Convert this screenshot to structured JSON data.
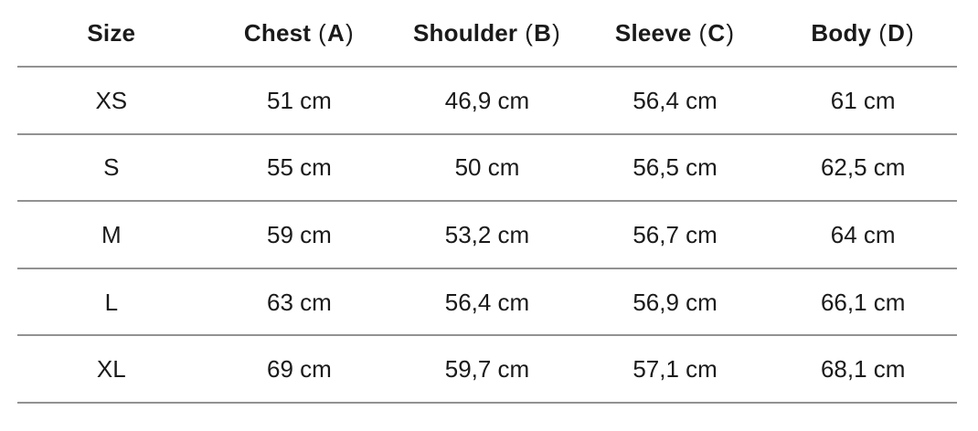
{
  "size_guide": {
    "punctuation": {
      "open_paren": "(",
      "close_paren": ")"
    },
    "unit": "cm",
    "headers": [
      {
        "label": "Size"
      },
      {
        "label": "Chest",
        "letter": "A"
      },
      {
        "label": "Shoulder",
        "letter": "B"
      },
      {
        "label": "Sleeve",
        "letter": "C"
      },
      {
        "label": "Body",
        "letter": "D"
      }
    ],
    "rows": [
      {
        "cells": [
          "XS",
          "51 cm",
          "46,9 cm",
          "56,4 cm",
          "61 cm"
        ]
      },
      {
        "cells": [
          "S",
          "55 cm",
          "50 cm",
          "56,5 cm",
          "62,5 cm"
        ]
      },
      {
        "cells": [
          "M",
          "59 cm",
          "53,2 cm",
          "56,7 cm",
          "64 cm"
        ]
      },
      {
        "cells": [
          "L",
          "63 cm",
          "56,4 cm",
          "56,9 cm",
          "66,1 cm"
        ]
      },
      {
        "cells": [
          "XL",
          "69 cm",
          "59,7 cm",
          "57,1 cm",
          "68,1 cm"
        ]
      }
    ]
  },
  "colors": {
    "background": "#ffffff",
    "text": "#1a1a1a",
    "divider": "#929292"
  }
}
